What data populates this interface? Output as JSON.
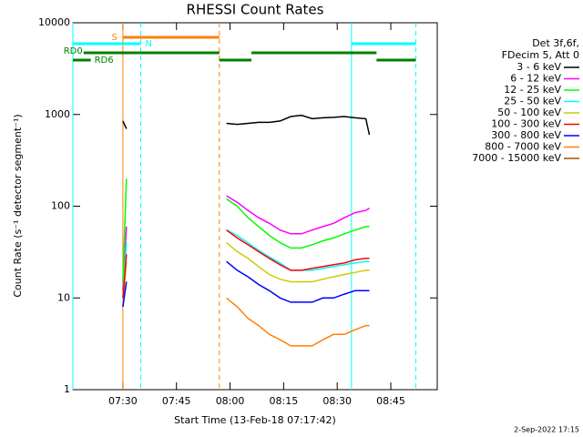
{
  "chart_data": {
    "type": "line",
    "title": "RHESSI Count Rates",
    "xlabel": "Start Time (13-Feb-18 07:17:42)",
    "ylabel": "Count Rate (s⁻¹ detector segment⁻¹)",
    "legend_header": [
      "Det 3f,6f,",
      "FDecim 5, Att 0"
    ],
    "footer": "2-Sep-2022 17:15",
    "log_y": true,
    "legend": "right",
    "xlim": [
      "07:16",
      "08:58"
    ],
    "xticks": [
      "07:30",
      "07:45",
      "08:00",
      "08:15",
      "08:30",
      "08:45"
    ],
    "ylim": [
      1,
      10000
    ],
    "yticks": [
      1,
      10,
      100,
      1000,
      10000
    ],
    "x": [
      "07:30",
      "07:31",
      "07:45",
      "07:59",
      "08:02",
      "08:05",
      "08:08",
      "08:11",
      "08:14",
      "08:17",
      "08:20",
      "08:23",
      "08:26",
      "08:29",
      "08:32",
      "08:35",
      "08:38",
      "08:39"
    ],
    "series": [
      {
        "name": "3 - 6 keV",
        "color": "#000000",
        "values": [
          850,
          700,
          null,
          800,
          780,
          800,
          820,
          820,
          850,
          950,
          980,
          900,
          920,
          930,
          950,
          920,
          900,
          600
        ]
      },
      {
        "name": "6 - 12 keV",
        "color": "#ff00ff",
        "values": [
          12,
          60,
          null,
          130,
          110,
          90,
          75,
          65,
          55,
          50,
          50,
          55,
          60,
          65,
          75,
          85,
          90,
          95
        ]
      },
      {
        "name": "12 - 25 keV",
        "color": "#00ff00",
        "values": [
          15,
          200,
          null,
          120,
          100,
          75,
          60,
          48,
          40,
          35,
          35,
          38,
          42,
          45,
          50,
          55,
          60,
          60
        ]
      },
      {
        "name": "25 - 50 keV",
        "color": "#00ffff",
        "values": [
          10,
          40,
          null,
          55,
          48,
          40,
          33,
          28,
          24,
          20,
          20,
          20,
          21,
          22,
          23,
          24,
          25,
          25
        ]
      },
      {
        "name": "50 - 100 keV",
        "color": "#cccc00",
        "values": [
          8,
          25,
          null,
          40,
          32,
          27,
          22,
          18,
          16,
          15,
          15,
          15,
          16,
          17,
          18,
          19,
          20,
          20
        ]
      },
      {
        "name": "100 - 300 keV",
        "color": "#ff0000",
        "values": [
          10,
          30,
          null,
          55,
          45,
          38,
          32,
          27,
          23,
          20,
          20,
          21,
          22,
          23,
          24,
          26,
          27,
          27
        ]
      },
      {
        "name": "300 - 800 keV",
        "color": "#0000ff",
        "values": [
          8,
          15,
          null,
          25,
          20,
          17,
          14,
          12,
          10,
          9,
          9,
          9,
          10,
          10,
          11,
          12,
          12,
          12
        ]
      },
      {
        "name": "800 - 7000 keV",
        "color": "#ff8000",
        "values": [
          null,
          6,
          null,
          10,
          8,
          6,
          5,
          4,
          3.5,
          3,
          3,
          3,
          3.5,
          4,
          4,
          4.5,
          5,
          5
        ]
      },
      {
        "name": "7000 - 15000 keV",
        "color": "#a05000",
        "values": [
          null,
          null,
          null,
          null,
          null,
          null,
          null,
          null,
          null,
          null,
          null,
          null,
          null,
          null,
          null,
          null,
          null,
          null
        ]
      }
    ],
    "flags": [
      {
        "label": "S",
        "color": "#ff8000",
        "segments": [
          [
            "07:30",
            "07:57"
          ]
        ]
      },
      {
        "label": "N",
        "color": "#00ffff",
        "segments": [
          [
            "07:16",
            "07:35"
          ],
          [
            "08:34",
            "08:52"
          ]
        ]
      },
      {
        "label": "RD0",
        "color": "#008000",
        "segments": [
          [
            "07:19",
            "07:57"
          ],
          [
            "08:06",
            "08:41"
          ]
        ]
      },
      {
        "label": "RD6",
        "color": "#008000",
        "segments": [
          [
            "07:16",
            "07:21"
          ],
          [
            "07:57",
            "08:06"
          ],
          [
            "08:41",
            "08:52"
          ]
        ]
      }
    ],
    "vlines": [
      {
        "x": "07:16",
        "color": "#00ffff",
        "dashed": false
      },
      {
        "x": "07:30",
        "color": "#ff8000",
        "dashed": false
      },
      {
        "x": "07:35",
        "color": "#00ffff",
        "dashed": true
      },
      {
        "x": "07:57",
        "color": "#ff8000",
        "dashed": true
      },
      {
        "x": "08:34",
        "color": "#00ffff",
        "dashed": false
      },
      {
        "x": "08:52",
        "color": "#00ffff",
        "dashed": true
      }
    ]
  }
}
